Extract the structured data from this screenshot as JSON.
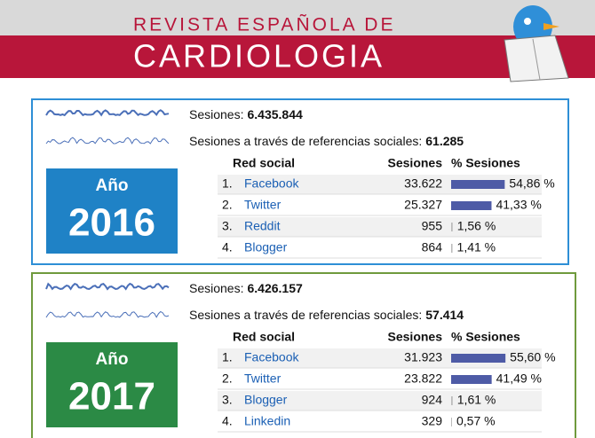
{
  "header": {
    "line1": "REVISTA ESPAÑOLA DE",
    "line2": "CARDIOLOGIA"
  },
  "panels": [
    {
      "year_label": "Año",
      "year": "2016",
      "sessions_label": "Sesiones:",
      "sessions": "6.435.844",
      "social_label": "Sesiones a través de referencias sociales:",
      "social_sessions": "61.285",
      "columns": [
        "Red social",
        "Sesiones",
        "% Sesiones"
      ],
      "rows": [
        {
          "rank": "1.",
          "network": "Facebook",
          "sessions": "33.622",
          "share": 54.86,
          "share_label": "54,86 %"
        },
        {
          "rank": "2.",
          "network": "Twitter",
          "sessions": "25.327",
          "share": 41.33,
          "share_label": "41,33 %"
        },
        {
          "rank": "3.",
          "network": "Reddit",
          "sessions": "955",
          "share": 1.56,
          "share_label": "1,56 %"
        },
        {
          "rank": "4.",
          "network": "Blogger",
          "sessions": "864",
          "share": 1.41,
          "share_label": "1,41 %"
        }
      ]
    },
    {
      "year_label": "Año",
      "year": "2017",
      "sessions_label": "Sesiones:",
      "sessions": "6.426.157",
      "social_label": "Sesiones a través de referencias sociales:",
      "social_sessions": "57.414",
      "columns": [
        "Red social",
        "Sesiones",
        "% Sesiones"
      ],
      "rows": [
        {
          "rank": "1.",
          "network": "Facebook",
          "sessions": "31.923",
          "share": 55.6,
          "share_label": "55,60 %"
        },
        {
          "rank": "2.",
          "network": "Twitter",
          "sessions": "23.822",
          "share": 41.49,
          "share_label": "41,49 %"
        },
        {
          "rank": "3.",
          "network": "Blogger",
          "sessions": "924",
          "share": 1.61,
          "share_label": "1,61 %"
        },
        {
          "rank": "4.",
          "network": "Linkedin",
          "sessions": "329",
          "share": 0.57,
          "share_label": "0,57 %"
        }
      ]
    }
  ]
}
